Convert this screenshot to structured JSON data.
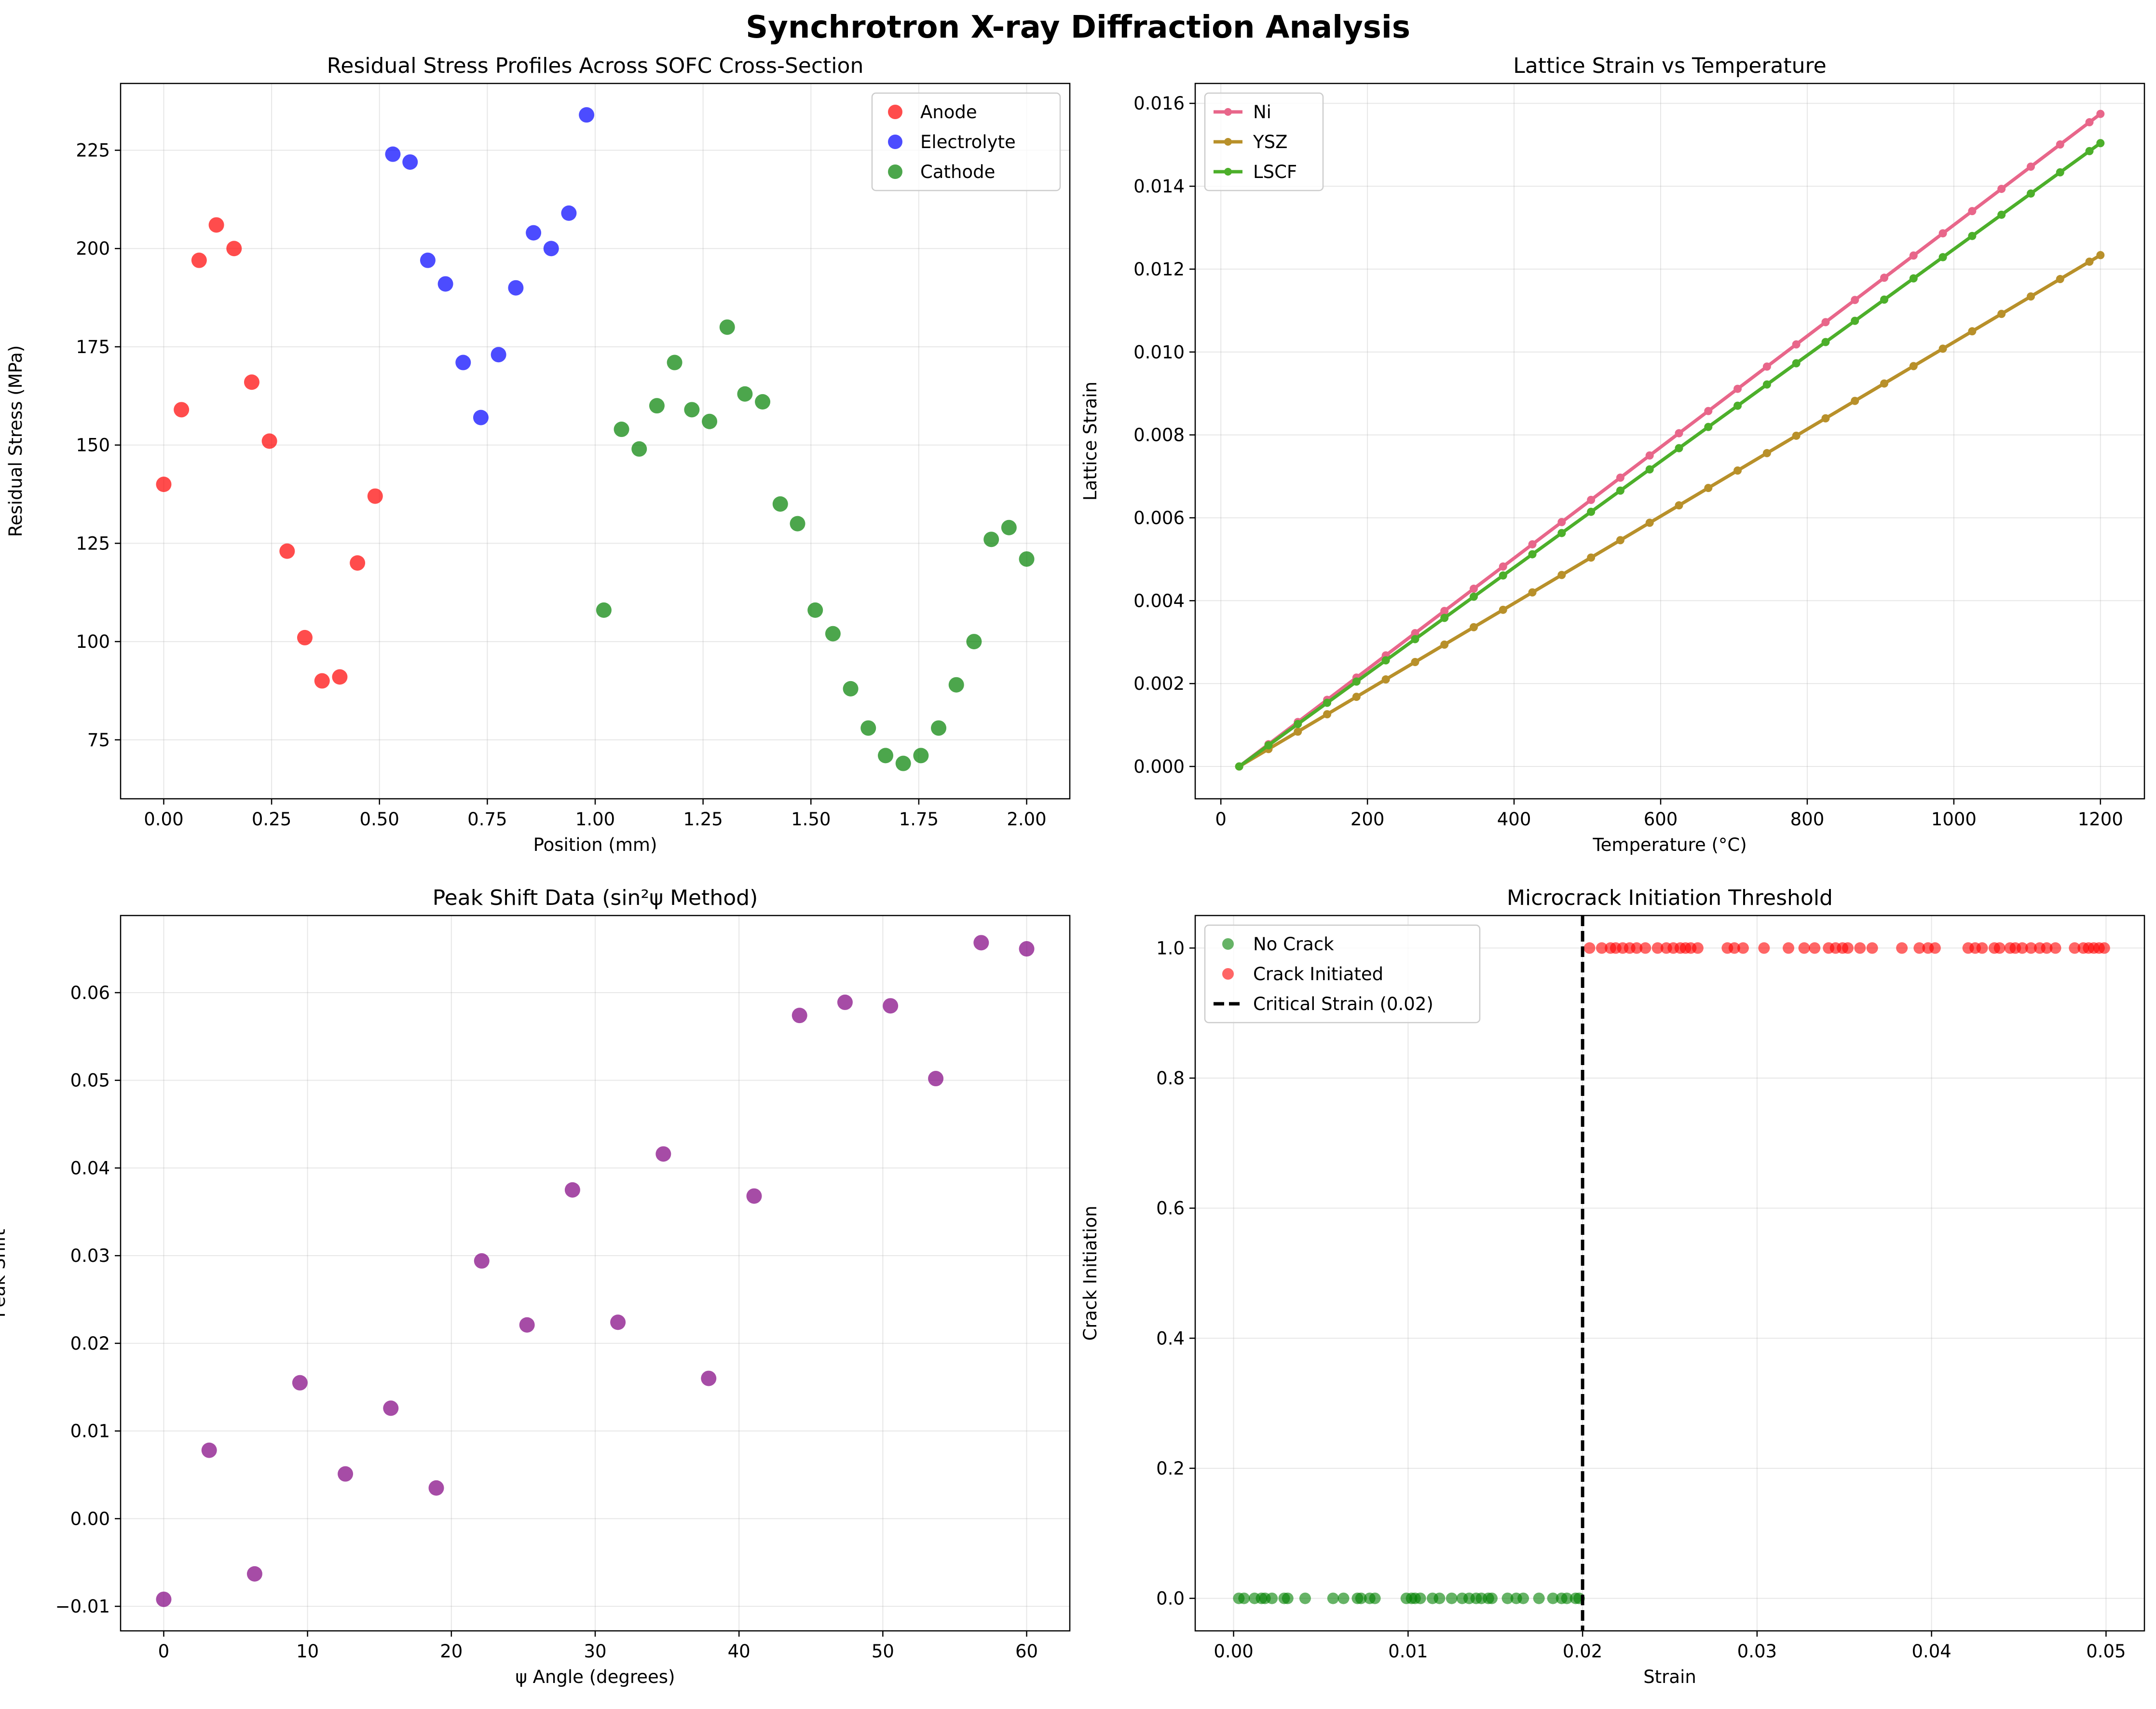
{
  "figure_title": "Synchrotron X-ray Diffraction Analysis",
  "colors": {
    "anode": "#ff0000",
    "electrolyte": "#0000ff",
    "cathode": "#008000",
    "ni": "#e8668a",
    "ysz": "#b8902a",
    "lscf": "#4caf2a",
    "peak": "#800080",
    "no_crack": "#008000",
    "crack": "#ff0000",
    "critical": "#000000"
  },
  "chart_data": [
    {
      "type": "scatter",
      "title": "Residual Stress Profiles Across SOFC Cross-Section",
      "xlabel": "Position (mm)",
      "ylabel": "Residual Stress (MPa)",
      "xlim": [
        -0.1,
        2.1
      ],
      "ylim": [
        60,
        242
      ],
      "xticks": [
        0.0,
        0.25,
        0.5,
        0.75,
        1.0,
        1.25,
        1.5,
        1.75,
        2.0
      ],
      "xtick_labels": [
        "0.00",
        "0.25",
        "0.50",
        "0.75",
        "1.00",
        "1.25",
        "1.50",
        "1.75",
        "2.00"
      ],
      "yticks": [
        75,
        100,
        125,
        150,
        175,
        200,
        225
      ],
      "ytick_labels": [
        "75",
        "100",
        "125",
        "150",
        "175",
        "200",
        "225"
      ],
      "grid": true,
      "legend_position": "top-right",
      "series": [
        {
          "name": "Anode",
          "color_key": "anode",
          "x": [
            0.0,
            0.041,
            0.082,
            0.122,
            0.163,
            0.204,
            0.245,
            0.286,
            0.327,
            0.367,
            0.408,
            0.449,
            0.49
          ],
          "y": [
            140,
            159,
            197,
            206,
            200,
            166,
            151,
            123,
            101,
            90,
            91,
            120,
            137
          ]
        },
        {
          "name": "Electrolyte",
          "color_key": "electrolyte",
          "x": [
            0.531,
            0.571,
            0.612,
            0.653,
            0.694,
            0.735,
            0.776,
            0.816,
            0.857,
            0.898,
            0.939,
            0.98
          ],
          "y": [
            224,
            222,
            197,
            191,
            171,
            157,
            173,
            190,
            204,
            200,
            209,
            234
          ]
        },
        {
          "name": "Cathode",
          "color_key": "cathode",
          "x": [
            1.02,
            1.061,
            1.102,
            1.143,
            1.184,
            1.224,
            1.265,
            1.306,
            1.347,
            1.388,
            1.429,
            1.469,
            1.51,
            1.551,
            1.592,
            1.633,
            1.673,
            1.714,
            1.755,
            1.796,
            1.837,
            1.878,
            1.918,
            1.959,
            2.0
          ],
          "y": [
            108,
            154,
            149,
            160,
            171,
            159,
            156,
            180,
            163,
            161,
            135,
            130,
            108,
            102,
            88,
            78,
            71,
            69,
            71,
            78,
            89,
            100,
            126,
            129,
            121
          ]
        }
      ]
    },
    {
      "type": "line",
      "title": "Lattice Strain vs Temperature",
      "xlabel": "Temperature (°C)",
      "ylabel": "Lattice Strain",
      "xlim": [
        -35,
        1260
      ],
      "ylim": [
        -0.00078,
        0.01648
      ],
      "xticks": [
        0,
        200,
        400,
        600,
        800,
        1000,
        1200
      ],
      "xtick_labels": [
        "0",
        "200",
        "400",
        "600",
        "800",
        "1000",
        "1200"
      ],
      "yticks": [
        0.0,
        0.002,
        0.004,
        0.006,
        0.008,
        0.01,
        0.012,
        0.014,
        0.016
      ],
      "ytick_labels": [
        "0.000",
        "0.002",
        "0.004",
        "0.006",
        "0.008",
        "0.010",
        "0.012",
        "0.014",
        "0.016"
      ],
      "grid": true,
      "legend_position": "top-left",
      "x": [
        25,
        65,
        105,
        145,
        185,
        225,
        265,
        305,
        345,
        385,
        425,
        465,
        505,
        545,
        585,
        625,
        665,
        705,
        745,
        785,
        825,
        865,
        905,
        945,
        985,
        1025,
        1065,
        1105,
        1145,
        1185
      ],
      "x_end": 1200,
      "series": [
        {
          "name": "Ni",
          "color_key": "ni",
          "slope": 1.34e-05,
          "x0": 25
        },
        {
          "name": "YSZ",
          "color_key": "ysz",
          "slope": 1.05e-05,
          "x0": 25
        },
        {
          "name": "LSCF",
          "color_key": "lscf",
          "slope": 1.28e-05,
          "x0": 25
        }
      ]
    },
    {
      "type": "scatter",
      "title": "Peak Shift Data (sin²ψ Method)",
      "xlabel": "ψ Angle (degrees)",
      "ylabel": "Peak Shift",
      "xlim": [
        -3,
        63
      ],
      "ylim": [
        -0.0128,
        0.0688
      ],
      "xticks": [
        0,
        10,
        20,
        30,
        40,
        50,
        60
      ],
      "xtick_labels": [
        "0",
        "10",
        "20",
        "30",
        "40",
        "50",
        "60"
      ],
      "yticks": [
        -0.01,
        0.0,
        0.01,
        0.02,
        0.03,
        0.04,
        0.05,
        0.06
      ],
      "ytick_labels": [
        "−0.01",
        "0.00",
        "0.01",
        "0.02",
        "0.03",
        "0.04",
        "0.05",
        "0.06"
      ],
      "grid": true,
      "series": [
        {
          "color_key": "peak",
          "x": [
            0.0,
            3.16,
            6.32,
            9.47,
            12.63,
            15.79,
            18.95,
            22.11,
            25.26,
            28.42,
            31.58,
            34.74,
            37.89,
            41.05,
            44.21,
            47.37,
            50.53,
            53.68,
            56.84,
            60.0
          ],
          "y": [
            -0.0092,
            0.0078,
            -0.0063,
            0.0155,
            0.0051,
            0.0126,
            0.0035,
            0.0294,
            0.0221,
            0.0375,
            0.0224,
            0.0416,
            0.016,
            0.0368,
            0.0574,
            0.0589,
            0.0585,
            0.0502,
            0.0657,
            0.065
          ]
        }
      ]
    },
    {
      "type": "scatter",
      "title": "Microcrack Initiation Threshold",
      "xlabel": "Strain",
      "ylabel": "Crack Initiation",
      "xlim": [
        -0.0022,
        0.0522
      ],
      "ylim": [
        -0.05,
        1.05
      ],
      "xticks": [
        0.0,
        0.01,
        0.02,
        0.03,
        0.04,
        0.05
      ],
      "xtick_labels": [
        "0.00",
        "0.01",
        "0.02",
        "0.03",
        "0.04",
        "0.05"
      ],
      "yticks": [
        0.0,
        0.2,
        0.4,
        0.6,
        0.8,
        1.0
      ],
      "ytick_labels": [
        "0.0",
        "0.2",
        "0.4",
        "0.6",
        "0.8",
        "1.0"
      ],
      "grid": true,
      "legend_position": "top-left",
      "critical_strain": 0.02,
      "series": [
        {
          "name": "No Crack",
          "color_key": "no_crack",
          "x": [
            0.0003,
            0.0006,
            0.0012,
            0.0016,
            0.0018,
            0.0022,
            0.0029,
            0.0031,
            0.0041,
            0.0057,
            0.0063,
            0.0071,
            0.0073,
            0.0078,
            0.0081,
            0.0099,
            0.0102,
            0.0104,
            0.0107,
            0.0114,
            0.0118,
            0.0125,
            0.0131,
            0.0135,
            0.0139,
            0.0142,
            0.0146,
            0.0148,
            0.0157,
            0.0162,
            0.0166,
            0.0175,
            0.0183,
            0.0188,
            0.0191,
            0.0196,
            0.0198
          ],
          "y": [
            0,
            0,
            0,
            0,
            0,
            0,
            0,
            0,
            0,
            0,
            0,
            0,
            0,
            0,
            0,
            0,
            0,
            0,
            0,
            0,
            0,
            0,
            0,
            0,
            0,
            0,
            0,
            0,
            0,
            0,
            0,
            0,
            0,
            0,
            0,
            0,
            0
          ]
        },
        {
          "name": "Crack Initiated",
          "color_key": "crack",
          "x": [
            0.0204,
            0.0211,
            0.0216,
            0.0219,
            0.0223,
            0.0227,
            0.0231,
            0.0236,
            0.0243,
            0.0248,
            0.0252,
            0.0256,
            0.0259,
            0.0262,
            0.0266,
            0.0283,
            0.0287,
            0.0292,
            0.0304,
            0.0318,
            0.0327,
            0.0333,
            0.0341,
            0.0345,
            0.0349,
            0.0352,
            0.0359,
            0.0366,
            0.0383,
            0.0393,
            0.0398,
            0.0402,
            0.0421,
            0.0425,
            0.0429,
            0.0436,
            0.0439,
            0.0445,
            0.0448,
            0.0452,
            0.0457,
            0.0462,
            0.0466,
            0.0471,
            0.0482,
            0.0487,
            0.049,
            0.0493,
            0.0496,
            0.0499
          ],
          "y": [
            1,
            1,
            1,
            1,
            1,
            1,
            1,
            1,
            1,
            1,
            1,
            1,
            1,
            1,
            1,
            1,
            1,
            1,
            1,
            1,
            1,
            1,
            1,
            1,
            1,
            1,
            1,
            1,
            1,
            1,
            1,
            1,
            1,
            1,
            1,
            1,
            1,
            1,
            1,
            1,
            1,
            1,
            1,
            1,
            1,
            1,
            1,
            1,
            1,
            1
          ]
        },
        {
          "name": "Critical Strain (0.02)",
          "color_key": "critical",
          "kind": "vline",
          "x": 0.02
        }
      ]
    }
  ]
}
